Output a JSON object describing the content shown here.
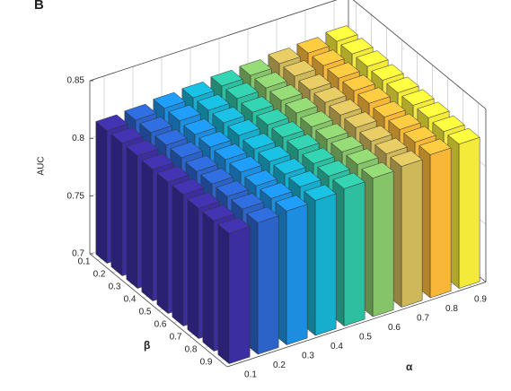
{
  "chart_data": {
    "type": "bar3d",
    "panel_label": "B",
    "xlabel": "α",
    "ylabel": "β",
    "zlabel": "AUC",
    "alpha": [
      0.1,
      0.2,
      0.3,
      0.4,
      0.5,
      0.6,
      0.7,
      0.8,
      0.9
    ],
    "beta": [
      0.1,
      0.2,
      0.3,
      0.4,
      0.5,
      0.6,
      0.7,
      0.8,
      0.9
    ],
    "colors": [
      "#3b2ea0",
      "#2b63c9",
      "#1d8de0",
      "#17aecd",
      "#2ebea0",
      "#86c46a",
      "#cfb85a",
      "#f9b73a",
      "#f4ea3a"
    ],
    "values": [
      [
        0.815,
        0.816,
        0.818,
        0.819,
        0.821,
        0.822,
        0.824,
        0.825,
        0.827
      ],
      [
        0.815,
        0.816,
        0.818,
        0.819,
        0.821,
        0.822,
        0.824,
        0.825,
        0.827
      ],
      [
        0.815,
        0.816,
        0.817,
        0.819,
        0.82,
        0.822,
        0.823,
        0.825,
        0.827
      ],
      [
        0.814,
        0.816,
        0.817,
        0.819,
        0.82,
        0.822,
        0.823,
        0.825,
        0.826
      ],
      [
        0.814,
        0.815,
        0.817,
        0.818,
        0.82,
        0.821,
        0.823,
        0.825,
        0.826
      ],
      [
        0.814,
        0.815,
        0.817,
        0.818,
        0.82,
        0.821,
        0.823,
        0.824,
        0.826
      ],
      [
        0.813,
        0.815,
        0.816,
        0.818,
        0.819,
        0.821,
        0.822,
        0.824,
        0.826
      ],
      [
        0.813,
        0.815,
        0.816,
        0.818,
        0.819,
        0.821,
        0.822,
        0.824,
        0.825
      ],
      [
        0.813,
        0.814,
        0.816,
        0.817,
        0.819,
        0.82,
        0.822,
        0.824,
        0.825
      ]
    ],
    "zlim": [
      0.7,
      0.85
    ],
    "zticks": [
      0.7,
      0.75,
      0.8,
      0.85
    ],
    "grid": true
  }
}
